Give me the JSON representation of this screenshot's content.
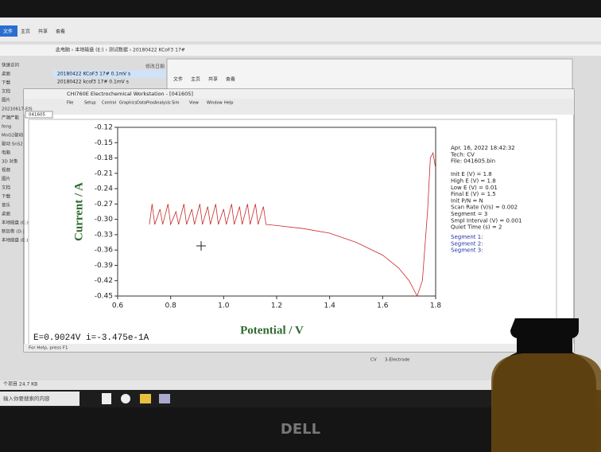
{
  "explorer": {
    "ribbon": [
      "文件",
      "主页",
      "共享",
      "查看"
    ],
    "address": "此电脑 › 本地磁盘 (E:) › 测试数据 › 20180422 KCoF3 17#",
    "column": "修改日期",
    "files": [
      "20180422 KCoF3 17# 0.1mV s",
      "20180422 kcof3 17# 0.1mV s"
    ],
    "nav": [
      "快速访问",
      "桌面",
      "下载",
      "文档",
      "图片",
      "20210617-EIS",
      "产端产能",
      "feng",
      "MnO2驱动",
      "驱动 SnS2",
      "电脑",
      "3D 对象",
      "视频",
      "图片",
      "文档",
      "下载",
      "音乐",
      "桌面",
      "本地磁盘 (C:)",
      "新加卷 (D:)",
      "本地磁盘 (E:)"
    ],
    "status": "个项目 24.7 KB",
    "search": "输入你要搜索的内容",
    "second_ribbon": [
      "文件",
      "主页",
      "共享",
      "查看"
    ]
  },
  "window": {
    "title": "CHI760E Electrochemical Workstation - [041605]",
    "menu": [
      "File",
      "Setup",
      "Control",
      "Graphics",
      "DataProc",
      "Analysis",
      "Sim",
      "View",
      "Window",
      "Help"
    ],
    "tab": "041605",
    "cursor": "E=0.9024V   i=-3.475e-1A",
    "help": "For Help, press F1",
    "status_right": [
      "CV",
      "3-Electrode"
    ],
    "info": [
      "Apr. 16, 2022   18:42:32",
      "Tech: CV",
      "File: 041605.bin",
      "",
      "Init E (V) = 1.8",
      "High E (V) = 1.8",
      "Low E (V) = 0.01",
      "Final E (V) = 1.5",
      "Init P/N = N",
      "Scan Rate (V/s) = 0.002",
      "Segment = 3",
      "Smpl Interval (V) = 0.001",
      "Quiet Time (s) = 2"
    ],
    "segments": [
      "Segment 1:",
      "Segment 2:",
      "Segment 3:"
    ]
  },
  "bezel_logo": "DELL",
  "chart_data": {
    "type": "line",
    "x_label": "Potential / V",
    "y_label": "Current / A",
    "xlim": [
      0.6,
      1.8
    ],
    "xticks": [
      0.6,
      0.8,
      {
        "value": 1,
        "label": "1.0"
      },
      1.2,
      1.4,
      1.6,
      1.8
    ],
    "ylim": [
      -0.45,
      -0.12
    ],
    "yticks": [
      -0.12,
      -0.15,
      -0.18,
      -0.21,
      -0.24,
      -0.27,
      {
        "value": -0.3,
        "label": "-0.30"
      },
      -0.33,
      -0.36,
      -0.39,
      -0.42,
      -0.45
    ],
    "series": [
      {
        "color": "#c8282a",
        "x": [
          0.72,
          0.73,
          0.74,
          0.76,
          0.77,
          0.79,
          0.8,
          0.82,
          0.83,
          0.85,
          0.86,
          0.88,
          0.89,
          0.91,
          0.92,
          0.94,
          0.95,
          0.97,
          0.98,
          1.0,
          1.01,
          1.03,
          1.04,
          1.06,
          1.07,
          1.09,
          1.1,
          1.12,
          1.13,
          1.15,
          1.16,
          1.2,
          1.3,
          1.4,
          1.5,
          1.6,
          1.66,
          1.7,
          1.73,
          1.75,
          1.77,
          1.78,
          1.79,
          1.8
        ],
        "values": [
          -0.31,
          -0.27,
          -0.31,
          -0.28,
          -0.31,
          -0.27,
          -0.31,
          -0.285,
          -0.31,
          -0.27,
          -0.31,
          -0.28,
          -0.31,
          -0.27,
          -0.31,
          -0.275,
          -0.31,
          -0.27,
          -0.31,
          -0.28,
          -0.31,
          -0.27,
          -0.31,
          -0.275,
          -0.31,
          -0.27,
          -0.31,
          -0.27,
          -0.31,
          -0.275,
          -0.31,
          -0.312,
          -0.318,
          -0.327,
          -0.345,
          -0.37,
          -0.395,
          -0.42,
          -0.45,
          -0.42,
          -0.28,
          -0.18,
          -0.17,
          -0.2
        ]
      }
    ]
  }
}
